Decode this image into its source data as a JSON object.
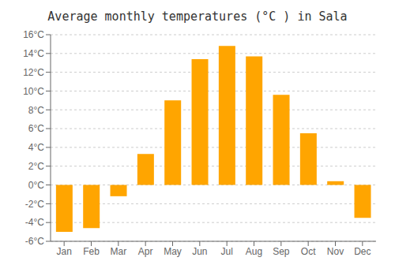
{
  "chart_data": {
    "type": "bar",
    "title": "Average monthly temperatures (°C ) in Sala",
    "categories": [
      "Jan",
      "Feb",
      "Mar",
      "Apr",
      "May",
      "Jun",
      "Jul",
      "Aug",
      "Sep",
      "Oct",
      "Nov",
      "Dec"
    ],
    "values": [
      -5.0,
      -4.6,
      -1.2,
      3.3,
      9.0,
      13.4,
      14.8,
      13.7,
      9.6,
      5.5,
      0.4,
      -3.5
    ],
    "color": "#FFA500",
    "ylim": [
      -6,
      16
    ],
    "yticks": [
      {
        "value": -6,
        "label": "-6°C"
      },
      {
        "value": -4,
        "label": "-4°C"
      },
      {
        "value": -2,
        "label": "-2°C"
      },
      {
        "value": 0,
        "label": "0°C"
      },
      {
        "value": 2,
        "label": "2°C"
      },
      {
        "value": 4,
        "label": "4°C"
      },
      {
        "value": 6,
        "label": "6°C"
      },
      {
        "value": 8,
        "label": "8°C"
      },
      {
        "value": 10,
        "label": "10°C"
      },
      {
        "value": 12,
        "label": "12°C"
      },
      {
        "value": 14,
        "label": "14°C"
      },
      {
        "value": 16,
        "label": "16°C"
      }
    ],
    "grid": true
  }
}
